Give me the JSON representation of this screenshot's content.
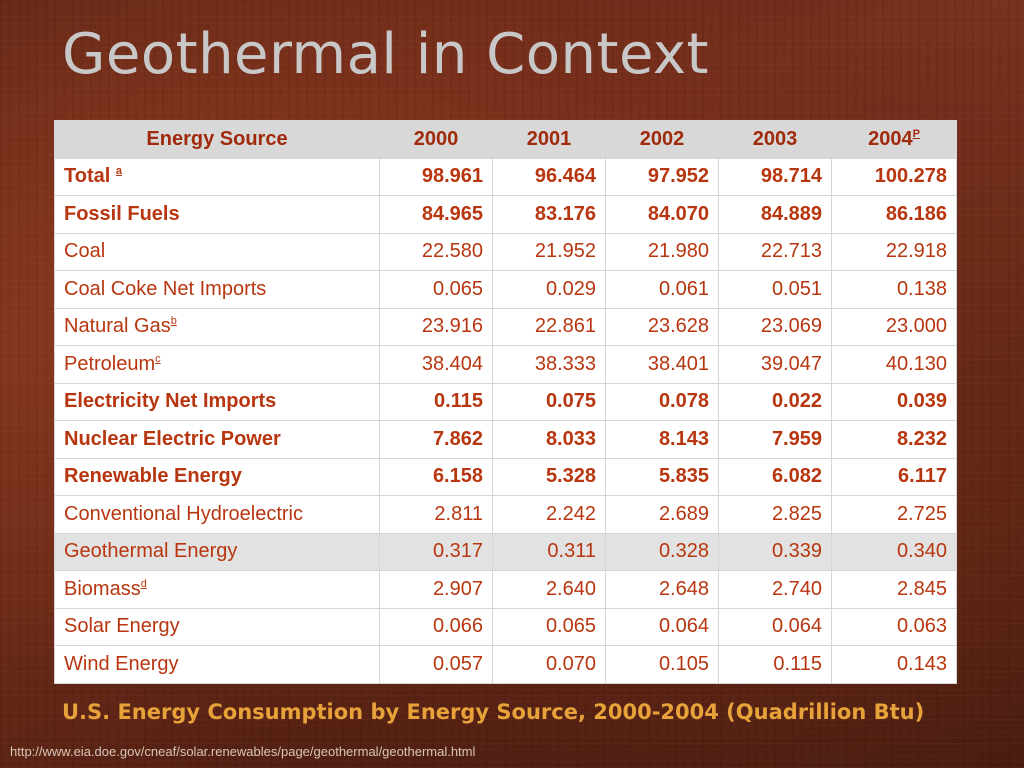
{
  "slide": {
    "title": "Geothermal in Context",
    "caption": "U.S. Energy Consumption by Energy Source, 2000-2004 (Quadrillion Btu)",
    "source_url": "http://www.eia.doe.gov/cneaf/solar.renewables/page/geothermal/geothermal.html"
  },
  "table": {
    "headers": [
      {
        "label": "Energy Source",
        "note": ""
      },
      {
        "label": "2000",
        "note": ""
      },
      {
        "label": "2001",
        "note": ""
      },
      {
        "label": "2002",
        "note": ""
      },
      {
        "label": "2003",
        "note": ""
      },
      {
        "label": "2004",
        "note": "P"
      }
    ],
    "rows": [
      {
        "source": "Total",
        "note": "a",
        "bold": true,
        "highlight": false,
        "values": [
          "98.961",
          "96.464",
          "97.952",
          "98.714",
          "100.278"
        ]
      },
      {
        "source": "Fossil Fuels",
        "note": "",
        "bold": true,
        "highlight": false,
        "values": [
          "84.965",
          "83.176",
          "84.070",
          "84.889",
          "86.186"
        ]
      },
      {
        "source": "Coal",
        "note": "",
        "bold": false,
        "highlight": false,
        "values": [
          "22.580",
          "21.952",
          "21.980",
          "22.713",
          "22.918"
        ]
      },
      {
        "source": "Coal Coke Net Imports",
        "note": "",
        "bold": false,
        "highlight": false,
        "values": [
          "0.065",
          "0.029",
          "0.061",
          "0.051",
          "0.138"
        ]
      },
      {
        "source": "Natural Gas",
        "note": "b",
        "bold": false,
        "highlight": false,
        "values": [
          "23.916",
          "22.861",
          "23.628",
          "23.069",
          "23.000"
        ]
      },
      {
        "source": "Petroleum",
        "note": "c",
        "bold": false,
        "highlight": false,
        "values": [
          "38.404",
          "38.333",
          "38.401",
          "39.047",
          "40.130"
        ]
      },
      {
        "source": "Electricity Net Imports",
        "note": "",
        "bold": true,
        "highlight": false,
        "values": [
          "0.115",
          "0.075",
          "0.078",
          "0.022",
          "0.039"
        ]
      },
      {
        "source": "Nuclear Electric Power",
        "note": "",
        "bold": true,
        "highlight": false,
        "values": [
          "7.862",
          "8.033",
          "8.143",
          "7.959",
          "8.232"
        ]
      },
      {
        "source": "Renewable Energy",
        "note": "",
        "bold": true,
        "highlight": false,
        "values": [
          "6.158",
          "5.328",
          "5.835",
          "6.082",
          "6.117"
        ]
      },
      {
        "source": "Conventional Hydroelectric",
        "note": "",
        "bold": false,
        "highlight": false,
        "values": [
          "2.811",
          "2.242",
          "2.689",
          "2.825",
          "2.725"
        ]
      },
      {
        "source": "Geothermal Energy",
        "note": "",
        "bold": false,
        "highlight": true,
        "values": [
          "0.317",
          "0.311",
          "0.328",
          "0.339",
          "0.340"
        ]
      },
      {
        "source": "Biomass",
        "note": "d",
        "bold": false,
        "highlight": false,
        "values": [
          "2.907",
          "2.640",
          "2.648",
          "2.740",
          "2.845"
        ]
      },
      {
        "source": "Solar Energy",
        "note": "",
        "bold": false,
        "highlight": false,
        "values": [
          "0.066",
          "0.065",
          "0.064",
          "0.064",
          "0.063"
        ]
      },
      {
        "source": "Wind Energy",
        "note": "",
        "bold": false,
        "highlight": false,
        "values": [
          "0.057",
          "0.070",
          "0.105",
          "0.115",
          "0.143"
        ]
      }
    ]
  },
  "colors": {
    "header_text": "#a02a0c",
    "cell_text": "#b8360f",
    "caption_text": "#e8a23a",
    "title_text": "#c8c8c8"
  }
}
